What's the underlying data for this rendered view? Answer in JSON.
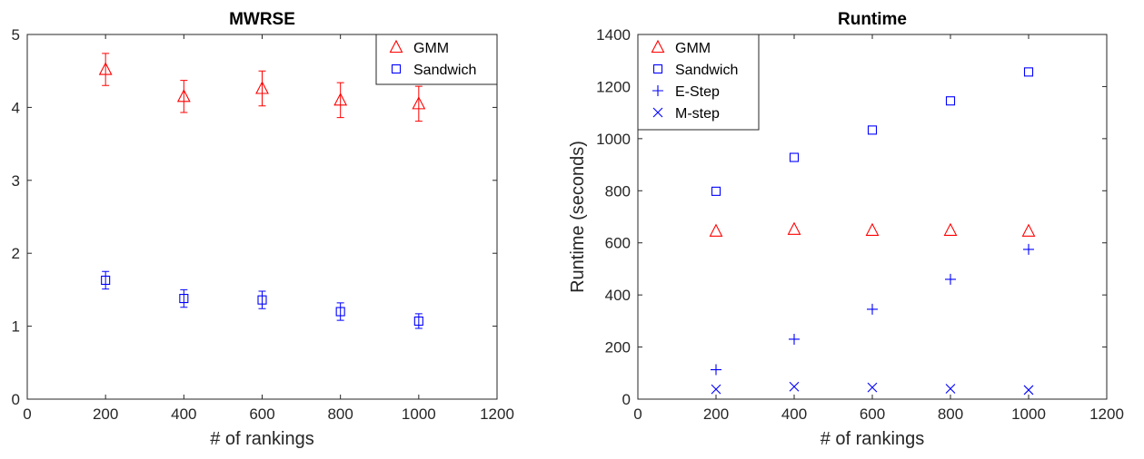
{
  "chart_data": [
    {
      "type": "scatter",
      "title": "MWRSE",
      "xlabel": "# of rankings",
      "ylabel": "",
      "xlim": [
        0,
        1200
      ],
      "ylim": [
        0,
        5
      ],
      "xticks": [
        0,
        200,
        400,
        600,
        800,
        1000,
        1200
      ],
      "yticks": [
        0,
        1,
        2,
        3,
        4,
        5
      ],
      "grid": false,
      "legend_position": "top-right",
      "series": [
        {
          "name": "GMM",
          "marker": "triangle",
          "color": "#ff0000",
          "x": [
            200,
            400,
            600,
            800,
            1000
          ],
          "y": [
            4.52,
            4.15,
            4.26,
            4.1,
            4.05
          ],
          "error": [
            0.22,
            0.22,
            0.24,
            0.24,
            0.24
          ]
        },
        {
          "name": "Sandwich",
          "marker": "square",
          "color": "#0000ff",
          "x": [
            200,
            400,
            600,
            800,
            1000
          ],
          "y": [
            1.63,
            1.38,
            1.36,
            1.2,
            1.07
          ],
          "error": [
            0.12,
            0.12,
            0.12,
            0.12,
            0.1
          ]
        }
      ]
    },
    {
      "type": "scatter",
      "title": "Runtime",
      "xlabel": "# of rankings",
      "ylabel": "Runtime (seconds)",
      "xlim": [
        0,
        1200
      ],
      "ylim": [
        0,
        1400
      ],
      "xticks": [
        0,
        200,
        400,
        600,
        800,
        1000,
        1200
      ],
      "yticks": [
        0,
        200,
        400,
        600,
        800,
        1000,
        1200,
        1400
      ],
      "grid": false,
      "legend_position": "top-left",
      "series": [
        {
          "name": "GMM",
          "marker": "triangle",
          "color": "#ff0000",
          "x": [
            200,
            400,
            600,
            800,
            1000
          ],
          "y": [
            645,
            652,
            648,
            648,
            645
          ]
        },
        {
          "name": "Sandwich",
          "marker": "square",
          "color": "#0000ff",
          "x": [
            200,
            400,
            600,
            800,
            1000
          ],
          "y": [
            798,
            928,
            1033,
            1145,
            1256
          ]
        },
        {
          "name": "E-Step",
          "marker": "plus",
          "color": "#0000ff",
          "x": [
            200,
            400,
            600,
            800,
            1000
          ],
          "y": [
            113,
            230,
            345,
            460,
            575
          ]
        },
        {
          "name": "M-step",
          "marker": "cross",
          "color": "#0000ff",
          "x": [
            200,
            400,
            600,
            800,
            1000
          ],
          "y": [
            38,
            48,
            45,
            40,
            35
          ]
        }
      ]
    }
  ]
}
